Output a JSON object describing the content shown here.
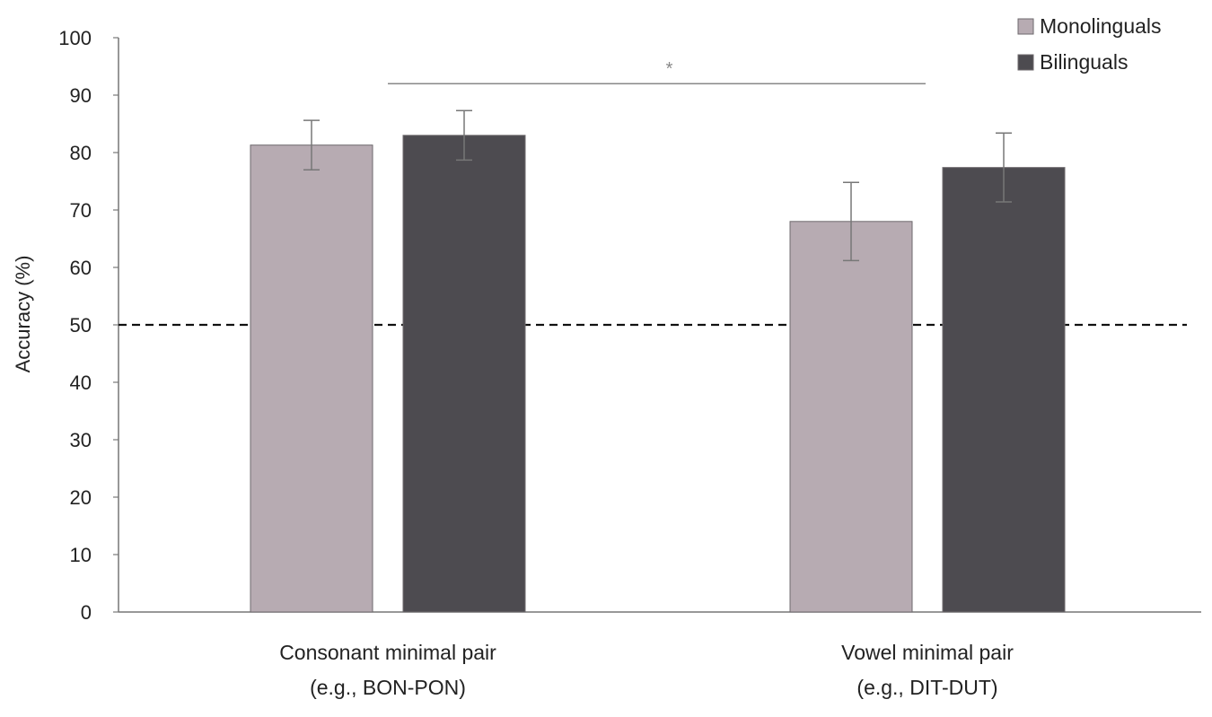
{
  "chart_data": {
    "type": "bar",
    "title": "",
    "xlabel": "",
    "ylabel": "Accuracy (%)",
    "ylim": [
      0,
      100
    ],
    "yticks": [
      0,
      10,
      20,
      30,
      40,
      50,
      60,
      70,
      80,
      90,
      100
    ],
    "categories": [
      [
        "Consonant  minimal pair",
        "(e.g., BON-PON)"
      ],
      [
        "Vowel minimal pair",
        "(e.g., DIT-DUT)"
      ]
    ],
    "series": [
      {
        "name": "Monolinguals",
        "color": "#b7abb2",
        "values": [
          81.3,
          68.0
        ],
        "error": [
          4.3,
          6.8
        ]
      },
      {
        "name": "Bilinguals",
        "color": "#4d4b50",
        "values": [
          83.0,
          77.4
        ],
        "error": [
          4.3,
          6.0
        ]
      }
    ],
    "reference_line": {
      "value": 50,
      "style": "dashed"
    },
    "significance": {
      "label": "*",
      "from_category": 0,
      "to_category": 1,
      "level": 92
    },
    "legend_position": "top-right",
    "grid": false
  }
}
